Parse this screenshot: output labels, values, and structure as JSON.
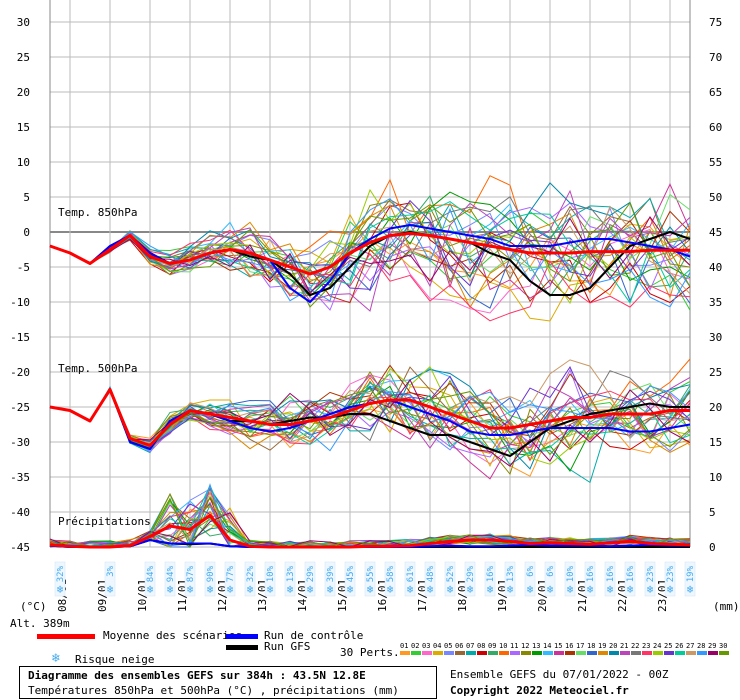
{
  "chart_data": {
    "type": "line",
    "title": "Diagramme des ensembles GEFS sur 384h : 43.5N 12.8E",
    "subtitle": "Températures 850hPa et 500hPa (°C) , précipitations (mm)",
    "x_ticks": [
      "08/01",
      "09/01",
      "10/01",
      "11/01",
      "12/01",
      "13/01",
      "14/01",
      "15/01",
      "16/01",
      "17/01",
      "18/01",
      "19/01",
      "20/01",
      "21/01",
      "22/01",
      "23/01"
    ],
    "xlim": [
      0,
      384
    ],
    "left_axis": {
      "label": "(°C)",
      "ylim": [
        -45,
        30
      ],
      "ticks": [
        30,
        25,
        20,
        15,
        10,
        5,
        0,
        -5,
        -10,
        -15,
        -20,
        -25,
        -30,
        -35,
        -40,
        -45
      ]
    },
    "right_axis": {
      "label": "(mm)",
      "ylim": [
        0,
        75
      ],
      "ticks": [
        75,
        70,
        65,
        60,
        55,
        50,
        45,
        40,
        35,
        30,
        25,
        20,
        15,
        10,
        5,
        0
      ]
    },
    "panel_labels": {
      "t850": "Temp. 850hPa",
      "t500": "Temp. 500hPa",
      "precip": "Précipitations"
    },
    "t850": {
      "times": [
        0,
        12,
        24,
        36,
        48,
        60,
        72,
        84,
        96,
        108,
        120,
        132,
        144,
        156,
        168,
        180,
        192,
        204,
        216,
        228,
        240,
        252,
        264,
        276,
        288,
        300,
        312,
        324,
        336,
        348,
        360,
        372,
        384
      ],
      "mean": [
        -2,
        -3,
        -4.5,
        -2.5,
        -0.5,
        -3.5,
        -4.5,
        -4,
        -3,
        -2.5,
        -3,
        -4,
        -5,
        -6,
        -5,
        -3,
        -1.5,
        -0.5,
        -0.2,
        -0.5,
        -1,
        -1.5,
        -2,
        -2.5,
        -3,
        -3,
        -3,
        -2.8,
        -2.8,
        -2.8,
        -2.6,
        -2.6,
        -2.6
      ],
      "control": [
        -2,
        -3,
        -4.5,
        -2,
        -0.5,
        -3,
        -4.5,
        -4,
        -3,
        -2.5,
        -3,
        -4,
        -8,
        -10,
        -7,
        -3,
        -1,
        0.5,
        1,
        0.5,
        0,
        -0.5,
        -1,
        -2,
        -2,
        -2,
        -1.5,
        -1,
        -1,
        -1.5,
        -2,
        -2.5,
        -3.5
      ],
      "gfs": [
        -2,
        -3,
        -4.5,
        -2,
        -0.5,
        -3,
        -4.5,
        -4,
        -3,
        -2.5,
        -3.5,
        -4,
        -6,
        -9,
        -8,
        -5,
        -2,
        -0.5,
        0,
        -0.5,
        -1,
        -1.5,
        -3,
        -4,
        -7,
        -9,
        -9,
        -8,
        -5,
        -2,
        -1,
        0,
        -1
      ]
    },
    "t500": {
      "times": [
        0,
        12,
        24,
        36,
        48,
        60,
        72,
        84,
        96,
        108,
        120,
        132,
        144,
        156,
        168,
        180,
        192,
        204,
        216,
        228,
        240,
        252,
        264,
        276,
        288,
        300,
        312,
        324,
        336,
        348,
        360,
        372,
        384
      ],
      "mean": [
        -25,
        -25.5,
        -27,
        -22.5,
        -29.5,
        -30.5,
        -27.5,
        -25.5,
        -26,
        -26.5,
        -27,
        -27.5,
        -27.5,
        -27,
        -26.5,
        -25.5,
        -24.5,
        -24,
        -24,
        -25,
        -26,
        -27,
        -28,
        -28,
        -27.5,
        -27,
        -26.5,
        -26.5,
        -26,
        -26,
        -26,
        -25.5,
        -25.5
      ],
      "control": [
        -25,
        -25.5,
        -27,
        -22.5,
        -30,
        -31,
        -27,
        -25.5,
        -26,
        -27,
        -28,
        -28.5,
        -28,
        -27,
        -26,
        -25,
        -24.5,
        -24,
        -25,
        -26,
        -27,
        -28.5,
        -29,
        -29,
        -28.5,
        -28,
        -28,
        -28,
        -28,
        -28.5,
        -28.5,
        -28,
        -27.5
      ],
      "gfs": [
        -25,
        -25.5,
        -27,
        -22.5,
        -30,
        -31,
        -27,
        -25.5,
        -26,
        -27,
        -27,
        -27.5,
        -27,
        -26.5,
        -26.5,
        -26,
        -26,
        -27,
        -28,
        -29,
        -29,
        -30,
        -31,
        -32,
        -30,
        -28,
        -27,
        -26,
        -25.5,
        -25,
        -24.5,
        -25,
        -25
      ]
    },
    "precip": {
      "times": [
        0,
        12,
        24,
        36,
        48,
        60,
        72,
        84,
        96,
        108,
        120,
        132,
        144,
        156,
        168,
        180,
        192,
        204,
        216,
        228,
        240,
        252,
        264,
        276,
        288,
        300,
        312,
        324,
        336,
        348,
        360,
        372,
        384
      ],
      "mean": [
        0.3,
        0.1,
        0,
        0,
        0.2,
        1.5,
        3,
        2.5,
        4.5,
        1,
        0.1,
        0,
        0,
        0,
        0,
        0,
        0.1,
        0.1,
        0.2,
        0.5,
        0.8,
        1,
        1,
        0.8,
        0.5,
        0.6,
        0.5,
        0.4,
        0.6,
        0.8,
        0.5,
        0.4,
        0.3
      ],
      "control": [
        0.2,
        0,
        0,
        0,
        0.1,
        1,
        0.5,
        0.5,
        0.5,
        0.1,
        0,
        0,
        0,
        0,
        0,
        0,
        0,
        0,
        0,
        0.1,
        0.2,
        0.1,
        0.1,
        0.2,
        0.3,
        0.2,
        0.2,
        0.2,
        0.1,
        0.2,
        0.3,
        0.2,
        0.2
      ],
      "gfs": [
        0.2,
        0,
        0,
        0,
        0.1,
        1,
        0.5,
        0.4,
        0.5,
        0.1,
        0,
        0,
        0,
        0,
        0,
        0,
        0,
        0,
        0,
        0,
        0,
        0,
        0,
        0,
        0,
        0,
        0,
        0,
        0,
        0,
        0,
        0,
        0
      ]
    },
    "snow_risk": {
      "times": [
        6,
        36,
        60,
        72,
        84,
        96,
        108,
        120,
        132,
        144,
        156,
        168,
        180,
        192,
        204,
        216,
        228,
        240,
        252,
        264,
        276,
        288,
        300,
        312,
        324,
        336,
        348,
        360,
        372,
        384
      ],
      "labels": [
        "32%",
        "3%",
        "84%",
        "94%",
        "87%",
        "90%",
        "77%",
        "32%",
        "10%",
        "13%",
        "29%",
        "39%",
        "45%",
        "55%",
        "58%",
        "61%",
        "48%",
        "52%",
        "29%",
        "16%",
        "13%",
        "6%",
        "6%",
        "10%",
        "16%",
        "16%",
        "16%",
        "23%",
        "23%",
        "19%"
      ]
    },
    "legend": {
      "mean": "Moyenne des scénarios",
      "control": "Run de contrôle",
      "gfs": "Run GFS",
      "snow": "Risque neige",
      "perts": "30 Perts.",
      "pert_numbers": [
        "01",
        "02",
        "03",
        "04",
        "05",
        "06",
        "07",
        "08",
        "09",
        "10",
        "11",
        "12",
        "13",
        "14",
        "15",
        "16",
        "17",
        "18",
        "19",
        "20",
        "21",
        "22",
        "23",
        "24",
        "25",
        "26",
        "27",
        "28",
        "29",
        "30"
      ]
    },
    "altitude": "Alt. 389m",
    "colors": {
      "mean": "#ff0000",
      "control": "#0000ff",
      "gfs": "#000000",
      "grid": "#bbbbbb",
      "snow": "#44aaee",
      "perts": [
        "#ff9922",
        "#33cc33",
        "#ff66cc",
        "#ddaa00",
        "#7788ff",
        "#996633",
        "#00aaaa",
        "#cc0000",
        "#33aa66",
        "#ff6600",
        "#aa66ff",
        "#888800",
        "#009900",
        "#33bbff",
        "#cc3399",
        "#aa3300",
        "#66dd66",
        "#3366cc",
        "#dd8800",
        "#0088aa",
        "#bb44bb",
        "#777777",
        "#ff3366",
        "#99cc00",
        "#6633cc",
        "#00cc99",
        "#cc9966",
        "#3399ff",
        "#990066",
        "#669900"
      ]
    }
  },
  "footer": {
    "title": "Diagramme des ensembles GEFS sur 384h : 43.5N 12.8E",
    "subtitle": "Températures 850hPa et 500hPa (°C) , précipitations (mm)",
    "run": "Ensemble GEFS du 07/01/2022 - 00Z",
    "copyright": "Copyright 2022 Meteociel.fr"
  }
}
